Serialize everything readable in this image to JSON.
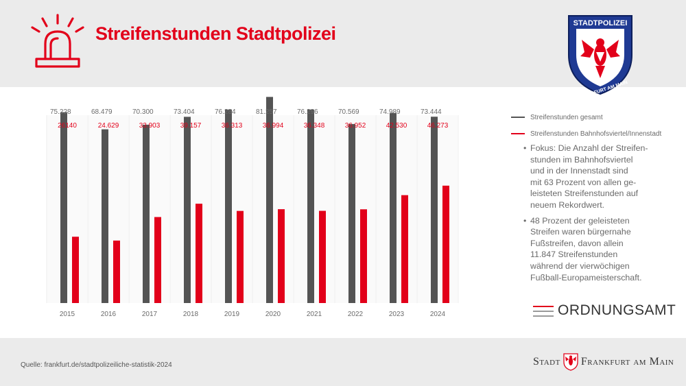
{
  "header": {
    "title": "Streifenstunden Stadtpolizei",
    "siren_icon": "siren-icon",
    "badge": {
      "top_text": "STADTPOLIZEI",
      "bottom_text": "FRANKFURT AM MAIN"
    }
  },
  "colors": {
    "accent": "#e2001a",
    "gray_bar": "#545454",
    "background_band": "#ebebeb"
  },
  "chart_data": {
    "type": "bar",
    "categories": [
      "2015",
      "2016",
      "2017",
      "2018",
      "2019",
      "2020",
      "2021",
      "2022",
      "2023",
      "2024"
    ],
    "series": [
      {
        "name": "Streifenstunden gesamt",
        "color": "#545454",
        "values": [
          75228,
          68479,
          70300,
          73404,
          76284,
          81257,
          76296,
          70569,
          74989,
          73444
        ],
        "labels": [
          "75.228",
          "68.479",
          "70.300",
          "73.404",
          "76.284",
          "81.257",
          "76.296",
          "70.569",
          "74.989",
          "73.444"
        ]
      },
      {
        "name": "Streifenstunden Bahnhofsviertel/Innenstadt",
        "color": "#e2001a",
        "values": [
          26140,
          24629,
          33903,
          39157,
          36313,
          36994,
          36348,
          36952,
          42530,
          46273
        ],
        "labels": [
          "26140",
          "24.629",
          "33.903",
          "39.157",
          "36.313",
          "36.994",
          "36.348",
          "36.952",
          "42.530",
          "46.273"
        ]
      }
    ],
    "grid": false,
    "legend_position": "right"
  },
  "legend": {
    "items": [
      {
        "label": "Streifenstunden gesamt",
        "color": "#545454"
      },
      {
        "label": "Streifenstunden Bahnhofsviertel/Innenstadt",
        "color": "#e2001a"
      }
    ]
  },
  "notes": [
    {
      "bullet": "•",
      "text": "Fokus: Die Anzahl der Streifen-\nstunden im Bahnhofsviertel\nund in der Innenstadt sind\nmit 63 Prozent von allen ge-\nleisteten Streifenstunden auf\nneuem Rekordwert."
    },
    {
      "bullet": "•",
      "text": "48 Prozent der geleisteten\nStreifen waren bürgernahe\nFußstreifen, davon allein\n11.847 Streifenstunden\nwährend der vierwöchigen\nFußball-Europameisterschaft."
    }
  ],
  "ordnungsamt": {
    "label": "ORDNUNGSAMT"
  },
  "footer": {
    "source": "Quelle: frankfurt.de/stadtpolizeiliche-statistik-2024",
    "city_left": "Stadt",
    "city_right": "Frankfurt am Main"
  }
}
